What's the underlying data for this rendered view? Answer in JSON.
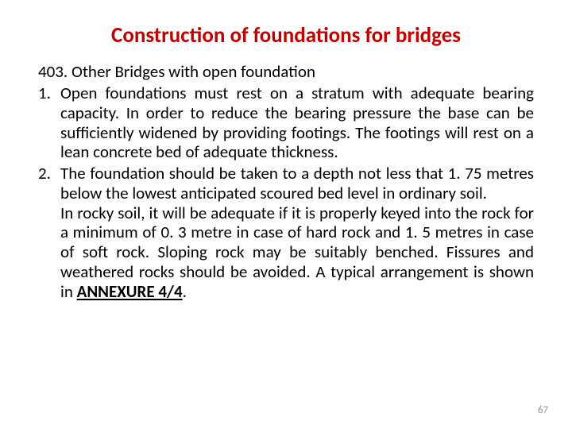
{
  "title": {
    "text": "Construction of foundations for bridges",
    "color": "#c00000",
    "fontsize": 27
  },
  "section_label": {
    "text": "403. Other Bridges with open foundation",
    "fontsize": 21,
    "color": "#000000"
  },
  "body_fontsize": 21,
  "body_line_height": 1.18,
  "items": [
    {
      "num": "1.",
      "paragraphs": [
        "Open foundations must rest on a stratum with adequate bearing capacity. In order to reduce the bearing pressure the base can be sufficiently widened by providing footings. The footings will rest on a lean concrete bed of adequate thickness."
      ]
    },
    {
      "num": "2.",
      "paragraphs": [
        "The foundation should be taken to a depth not less that 1. 75 metres below the lowest anticipated scoured bed level in ordinary soil.",
        "In rocky soil, it will be adequate if it is properly keyed into the rock for a minimum of 0. 3 metre in case of hard rock and 1. 5 metres in case of soft rock. Sloping rock may be suitably benched. Fissures and weathered rocks should be avoided. A typical arrangement is shown in "
      ],
      "annex": "ANNEXURE 4/4"
    }
  ],
  "page_number": "67",
  "page_number_color": "#969696"
}
